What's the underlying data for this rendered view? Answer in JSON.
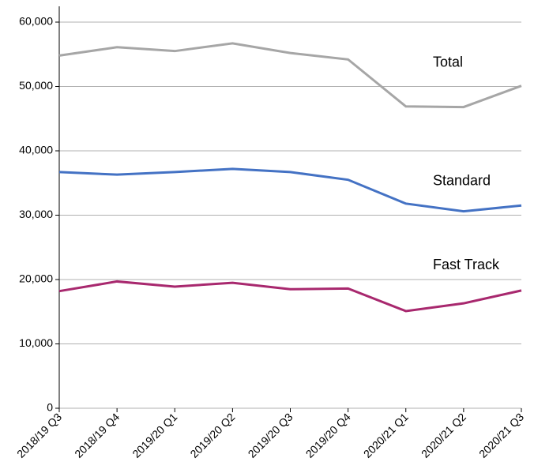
{
  "chart_data": {
    "type": "line",
    "categories": [
      "2018/19 Q3",
      "2018/19 Q4",
      "2019/20 Q1",
      "2019/20 Q2",
      "2019/20 Q3",
      "2019/20 Q4",
      "2020/21 Q1",
      "2020/21 Q2",
      "2020/21 Q3"
    ],
    "series": [
      {
        "name": "Total",
        "color": "#a6a6a6",
        "values": [
          54800,
          56100,
          55500,
          56700,
          55200,
          54200,
          46900,
          46800,
          50100
        ]
      },
      {
        "name": "Standard",
        "color": "#4472c4",
        "values": [
          36700,
          36300,
          36700,
          37200,
          36700,
          35500,
          31800,
          30600,
          31500
        ]
      },
      {
        "name": "Fast Track",
        "color": "#a8286e",
        "values": [
          18200,
          19700,
          18900,
          19500,
          18500,
          18600,
          15100,
          16300,
          18300
        ]
      }
    ],
    "ylim": [
      0,
      60000
    ],
    "yticks": [
      0,
      {
        "value": 10000,
        "label": "10,000"
      },
      {
        "value": 20000,
        "label": "20,000"
      },
      {
        "value": 30000,
        "label": "30,000"
      },
      {
        "value": 40000,
        "label": "40,000"
      },
      {
        "value": 50000,
        "label": "50,000"
      },
      {
        "value": 60000,
        "label": "60,000"
      }
    ],
    "grid": true
  }
}
